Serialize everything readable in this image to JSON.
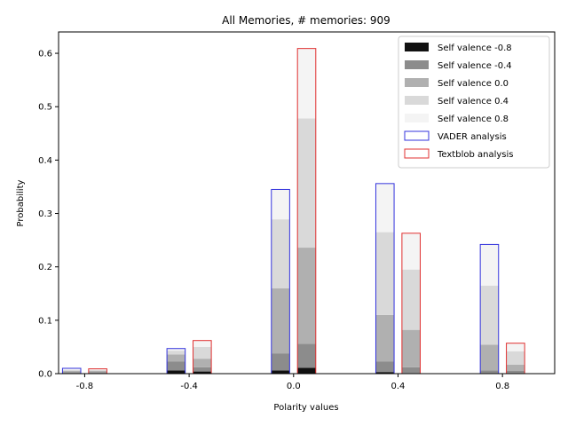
{
  "chart_data": {
    "type": "bar",
    "title": "All Memories, # memories: 909",
    "xlabel": "Polarity values",
    "ylabel": "Probability",
    "categories": [
      "-0.8",
      "-0.4",
      "0.0",
      "0.4",
      "0.8"
    ],
    "x": [
      -0.8,
      -0.4,
      0.0,
      0.4,
      0.8
    ],
    "xlim": [
      -0.9,
      1.0
    ],
    "ylim": [
      0,
      0.64
    ],
    "yticks": [
      "0.0",
      "0.1",
      "0.2",
      "0.3",
      "0.4",
      "0.5",
      "0.6"
    ],
    "stacking": "stacked",
    "groups": [
      {
        "name": "VADER analysis",
        "edge_color": "#3333dd",
        "offset": -0.05,
        "series": [
          {
            "name": "Self valence -0.8",
            "color": "#111111",
            "values": [
              0.001,
              0.006,
              0.006,
              0.003,
              0.001
            ]
          },
          {
            "name": "Self valence -0.4",
            "color": "#8c8c8c",
            "values": [
              0.002,
              0.017,
              0.032,
              0.02,
              0.005
            ]
          },
          {
            "name": "Self valence 0.0",
            "color": "#b0b0b0",
            "values": [
              0.002,
              0.013,
              0.122,
              0.087,
              0.048
            ]
          },
          {
            "name": "Self valence 0.4",
            "color": "#d9d9d9",
            "values": [
              0.002,
              0.007,
              0.129,
              0.155,
              0.111
            ]
          },
          {
            "name": "Self valence 0.8",
            "color": "#f4f4f4",
            "values": [
              0.003,
              0.004,
              0.056,
              0.091,
              0.077
            ]
          }
        ]
      },
      {
        "name": "Textblob analysis",
        "edge_color": "#e03030",
        "offset": 0.05,
        "series": [
          {
            "name": "Self valence -0.8",
            "color": "#111111",
            "values": [
              0.001,
              0.004,
              0.011,
              0.001,
              0.001
            ]
          },
          {
            "name": "Self valence -0.4",
            "color": "#8c8c8c",
            "values": [
              0.002,
              0.008,
              0.045,
              0.011,
              0.004
            ]
          },
          {
            "name": "Self valence 0.0",
            "color": "#b0b0b0",
            "values": [
              0.002,
              0.016,
              0.18,
              0.07,
              0.012
            ]
          },
          {
            "name": "Self valence 0.4",
            "color": "#d9d9d9",
            "values": [
              0.002,
              0.022,
              0.242,
              0.113,
              0.025
            ]
          },
          {
            "name": "Self valence 0.8",
            "color": "#f4f4f4",
            "values": [
              0.002,
              0.012,
              0.131,
              0.068,
              0.015
            ]
          }
        ]
      }
    ],
    "legend": {
      "placement": "top-right",
      "entries": [
        {
          "label": "Self valence -0.8",
          "fill": "#111111",
          "edge": "none"
        },
        {
          "label": "Self valence -0.4",
          "fill": "#8c8c8c",
          "edge": "none"
        },
        {
          "label": "Self valence 0.0",
          "fill": "#b0b0b0",
          "edge": "none"
        },
        {
          "label": "Self valence 0.4",
          "fill": "#d9d9d9",
          "edge": "none"
        },
        {
          "label": "Self valence 0.8",
          "fill": "#f4f4f4",
          "edge": "none"
        },
        {
          "label": "VADER analysis",
          "fill": "none",
          "edge": "#3333dd"
        },
        {
          "label": "Textblob analysis",
          "fill": "none",
          "edge": "#e03030"
        }
      ]
    },
    "grid": false
  }
}
